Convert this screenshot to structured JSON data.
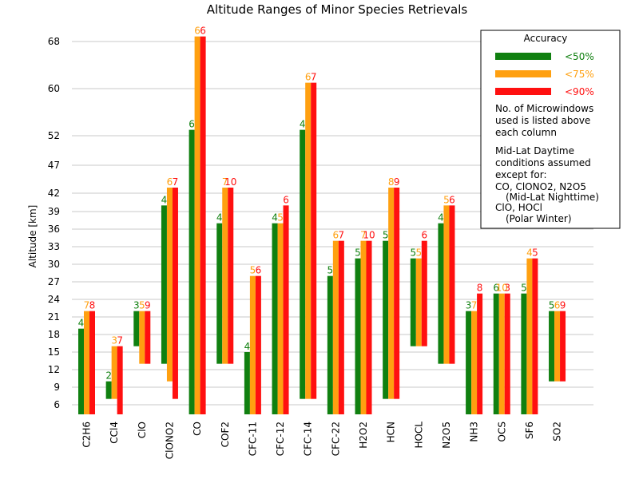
{
  "chart_data": {
    "type": "bar",
    "title": "Altitude Ranges of Minor Species Retrievals",
    "xlabel": "",
    "ylabel": "Altitude [km]",
    "ylim": [
      4,
      74
    ],
    "grid": true,
    "yticks": [
      6,
      9,
      12,
      15,
      18,
      21,
      24,
      27,
      30,
      33,
      36,
      39,
      42,
      47,
      52,
      60,
      68
    ],
    "categories": [
      "C2H6",
      "CCl4",
      "ClO",
      "ClONO2",
      "CO",
      "COF2",
      "CFC-11",
      "CFC-12",
      "CFC-14",
      "CFC-22",
      "H2O2",
      "HCN",
      "HOCL",
      "N2O5",
      "NH3",
      "OCS",
      "SF6",
      "SO2"
    ],
    "series": [
      {
        "name": "<50%",
        "color": "#108010",
        "ranges": [
          [
            4,
            19
          ],
          [
            7,
            10
          ],
          [
            16,
            22
          ],
          [
            13,
            40
          ],
          [
            4,
            53
          ],
          [
            13,
            37
          ],
          [
            4,
            15
          ],
          [
            4,
            37
          ],
          [
            7,
            53
          ],
          [
            4,
            28
          ],
          [
            4,
            31
          ],
          [
            7,
            34
          ],
          [
            16,
            31
          ],
          [
            13,
            37
          ],
          [
            4,
            22
          ],
          [
            4,
            25
          ],
          [
            4,
            25
          ],
          [
            10,
            22
          ]
        ],
        "labels": [
          "4",
          "2",
          "3",
          "4",
          "6",
          "4",
          "4",
          "4",
          "4",
          "5",
          "5",
          "5",
          "5",
          "4",
          "3",
          "6",
          "5",
          "5"
        ]
      },
      {
        "name": "<75%",
        "color": "#ffa010",
        "ranges": [
          [
            4,
            22
          ],
          [
            7,
            16
          ],
          [
            13,
            22
          ],
          [
            10,
            43
          ],
          [
            4,
            69
          ],
          [
            13,
            43
          ],
          [
            4,
            28
          ],
          [
            4,
            37
          ],
          [
            7,
            61
          ],
          [
            4,
            34
          ],
          [
            4,
            34
          ],
          [
            7,
            43
          ],
          [
            16,
            31
          ],
          [
            13,
            40
          ],
          [
            4,
            22
          ],
          [
            4,
            25
          ],
          [
            4,
            31
          ],
          [
            10,
            22
          ]
        ],
        "labels": [
          "7",
          "3",
          "5",
          "6",
          "6",
          "7",
          "5",
          "5",
          "6",
          "6",
          "7",
          "8",
          "5",
          "5",
          "7",
          "10",
          "4",
          "6"
        ]
      },
      {
        "name": "<90%",
        "color": "#ff1010",
        "ranges": [
          [
            4,
            22
          ],
          [
            4,
            16
          ],
          [
            13,
            22
          ],
          [
            7,
            43
          ],
          [
            4,
            69
          ],
          [
            13,
            43
          ],
          [
            4,
            28
          ],
          [
            4,
            40
          ],
          [
            7,
            61
          ],
          [
            4,
            34
          ],
          [
            4,
            34
          ],
          [
            7,
            43
          ],
          [
            16,
            34
          ],
          [
            13,
            40
          ],
          [
            4,
            25
          ],
          [
            4,
            25
          ],
          [
            4,
            31
          ],
          [
            10,
            22
          ]
        ],
        "labels": [
          "8",
          "7",
          "9",
          "7",
          "6",
          "10",
          "6",
          "6",
          "7",
          "7",
          "10",
          "9",
          "6",
          "6",
          "8",
          "3",
          "5",
          "9"
        ]
      }
    ],
    "legend": {
      "position": "top-right",
      "title": "Accuracy",
      "notes": [
        "No. of Microwindows",
        "used is listed above",
        "each column",
        "Mid-Lat Daytime",
        "conditions assumed",
        "except for:",
        "CO, ClONO2, N2O5",
        "(Mid-Lat Nighttime)",
        "ClO, HOCl",
        "(Polar Winter)"
      ]
    }
  }
}
